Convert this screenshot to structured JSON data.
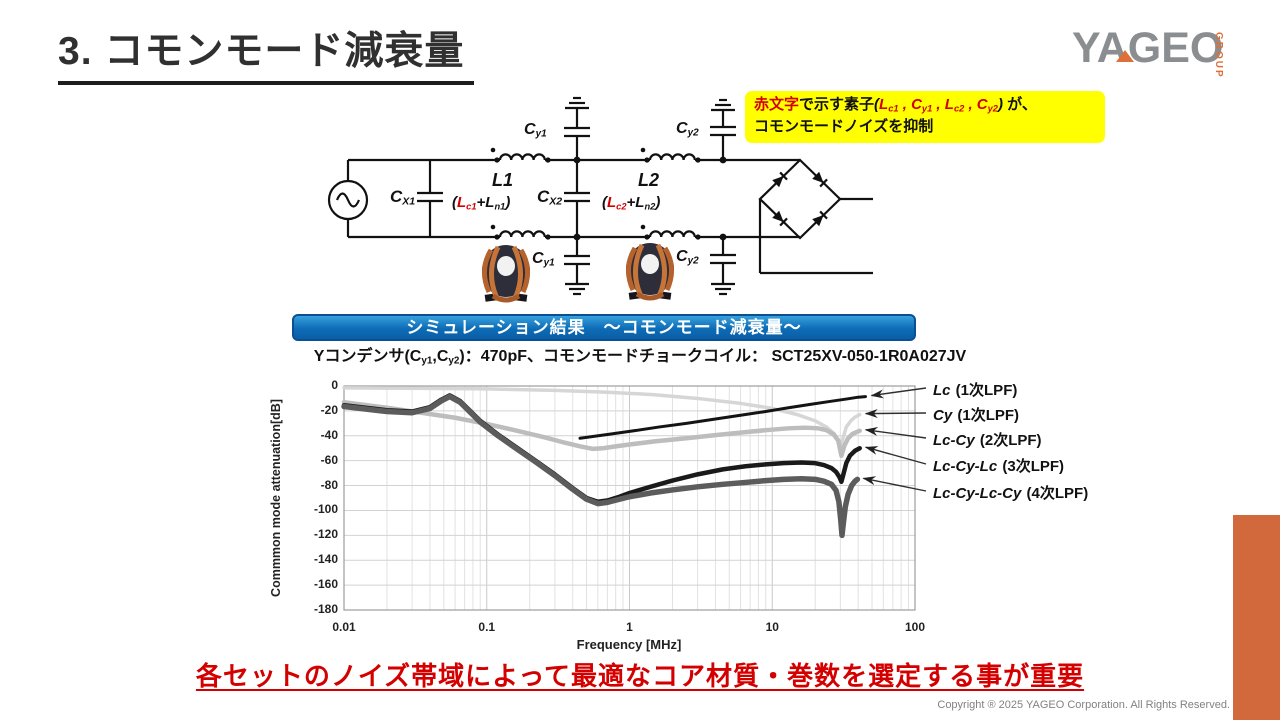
{
  "header": {
    "title": "3. コモンモード減衰量",
    "logo": {
      "name": "YAGEO",
      "group": "GROUP"
    }
  },
  "note": {
    "red_label": "赤文字",
    "mid": "で示す素子",
    "paren_open": "(",
    "components": [
      {
        "base": "L",
        "sub": "c1"
      },
      {
        "base": "C",
        "sub": "y1"
      },
      {
        "base": "L",
        "sub": "c2"
      },
      {
        "base": "C",
        "sub": "y2"
      }
    ],
    "separator": " , ",
    "paren_close": ")",
    "suffix": " が、",
    "line2": "コモンモードノイズを抑制"
  },
  "circuit": {
    "cx1": {
      "base": "C",
      "sub": "X1"
    },
    "cx2": {
      "base": "C",
      "sub": "X2"
    },
    "cy1": {
      "base": "C",
      "sub": "y1"
    },
    "cy2": {
      "base": "C",
      "sub": "y2"
    },
    "l1": {
      "name": "L1",
      "paren_open": "(",
      "red": {
        "base": "L",
        "sub": "c1"
      },
      "plus": "+",
      "black": {
        "base": "L",
        "sub": "n1"
      },
      "paren_close": ")"
    },
    "l2": {
      "name": "L2",
      "paren_open": "(",
      "red": {
        "base": "L",
        "sub": "c2"
      },
      "plus": "+",
      "black": {
        "base": "L",
        "sub": "n2"
      },
      "paren_close": ")"
    }
  },
  "banner": {
    "text": "シミュレーション結果　～コモンモード減衰量～"
  },
  "condition": {
    "prefix": "Yコンデンサ(",
    "cap1": {
      "base": "C",
      "sub": "y1"
    },
    "comma": ",",
    "cap2": {
      "base": "C",
      "sub": "y2"
    },
    "suffix": ")：470pF、コモンモードチョークコイル： SCT25XV-050-1R0A027JV"
  },
  "chart_data": {
    "type": "line",
    "xlabel": "Frequency [MHz]",
    "ylabel": "Commmon mode attenuation[dB]",
    "x_scale": "log",
    "xlim": [
      0.01,
      100
    ],
    "ylim": [
      -180,
      0
    ],
    "x_ticks": [
      "0.01",
      "0.1",
      "1",
      "10",
      "100"
    ],
    "y_ticks": [
      "0",
      "-20",
      "-40",
      "-60",
      "-80",
      "-100",
      "-120",
      "-140",
      "-160",
      "-180"
    ],
    "grid": true,
    "legend_position": "right",
    "legend": [
      {
        "italic": "Lc",
        "rest": " (1次LPF)"
      },
      {
        "italic": "Cy",
        "rest": " (1次LPF)"
      },
      {
        "italic": "Lc-Cy",
        "rest": " (2次LPF)"
      },
      {
        "italic": "Lc-Cy-Lc",
        "rest": " (3次LPF)"
      },
      {
        "italic": "Lc-Cy-Lc-Cy",
        "rest": " (4次LPF)"
      }
    ],
    "series": [
      {
        "name": "Lc (1次LPF)",
        "color": "#141414",
        "width": 3,
        "points": [
          [
            0.45,
            -42
          ],
          [
            0.7,
            -39
          ],
          [
            1,
            -36.5
          ],
          [
            1.6,
            -33
          ],
          [
            2.5,
            -30
          ],
          [
            4,
            -26.5
          ],
          [
            6,
            -23.5
          ],
          [
            9,
            -20.5
          ],
          [
            13,
            -17.5
          ],
          [
            18,
            -15
          ],
          [
            25,
            -12.5
          ],
          [
            33,
            -10.5
          ],
          [
            40,
            -9
          ],
          [
            45,
            -8.5
          ]
        ]
      },
      {
        "name": "Cy (1次LPF)",
        "color": "#d6d6d6",
        "width": 3.5,
        "points": [
          [
            0.01,
            -1.5
          ],
          [
            0.03,
            -1.8
          ],
          [
            0.1,
            -2.3
          ],
          [
            0.3,
            -3.5
          ],
          [
            0.7,
            -5
          ],
          [
            1.5,
            -7
          ],
          [
            3,
            -10
          ],
          [
            6,
            -14
          ],
          [
            10,
            -18
          ],
          [
            15,
            -23
          ],
          [
            20,
            -28
          ],
          [
            24,
            -33
          ],
          [
            27,
            -38
          ],
          [
            29,
            -43
          ],
          [
            30.3,
            -47
          ],
          [
            31.5,
            -41
          ],
          [
            33,
            -33
          ],
          [
            35.5,
            -28
          ],
          [
            38,
            -25
          ],
          [
            41,
            -23
          ]
        ]
      },
      {
        "name": "Lc-Cy (2次LPF)",
        "color": "#bdbdbd",
        "width": 4.5,
        "points": [
          [
            0.01,
            -13
          ],
          [
            0.02,
            -17.5
          ],
          [
            0.04,
            -22.5
          ],
          [
            0.06,
            -25.5
          ],
          [
            0.1,
            -30.5
          ],
          [
            0.15,
            -35
          ],
          [
            0.25,
            -41
          ],
          [
            0.35,
            -45.5
          ],
          [
            0.45,
            -48.5
          ],
          [
            0.55,
            -50.5
          ],
          [
            0.65,
            -50
          ],
          [
            0.8,
            -48.5
          ],
          [
            1,
            -47
          ],
          [
            1.5,
            -44.5
          ],
          [
            2.5,
            -42
          ],
          [
            4,
            -39.5
          ],
          [
            6,
            -37.5
          ],
          [
            9,
            -35.5
          ],
          [
            13,
            -34
          ],
          [
            17,
            -33.5
          ],
          [
            21,
            -34
          ],
          [
            24,
            -35.5
          ],
          [
            27,
            -39
          ],
          [
            29,
            -44
          ],
          [
            30.5,
            -56
          ],
          [
            32,
            -48
          ],
          [
            34,
            -42
          ],
          [
            36.5,
            -38.5
          ],
          [
            39,
            -37
          ],
          [
            41,
            -36
          ]
        ]
      },
      {
        "name": "Lc-Cy-Lc (3次LPF)",
        "color": "#1a1a1a",
        "width": 4.5,
        "points": [
          [
            0.01,
            -15.5
          ],
          [
            0.02,
            -19.5
          ],
          [
            0.03,
            -20.5
          ],
          [
            0.04,
            -17
          ],
          [
            0.048,
            -11
          ],
          [
            0.055,
            -7.5
          ],
          [
            0.065,
            -12
          ],
          [
            0.075,
            -19
          ],
          [
            0.09,
            -28
          ],
          [
            0.12,
            -39
          ],
          [
            0.16,
            -49
          ],
          [
            0.22,
            -60
          ],
          [
            0.3,
            -71
          ],
          [
            0.4,
            -82
          ],
          [
            0.5,
            -90
          ],
          [
            0.6,
            -93
          ],
          [
            0.7,
            -92
          ],
          [
            0.85,
            -89
          ],
          [
            1,
            -86
          ],
          [
            1.4,
            -81
          ],
          [
            2,
            -76
          ],
          [
            3,
            -71
          ],
          [
            4.5,
            -67
          ],
          [
            6.5,
            -64.5
          ],
          [
            9,
            -63
          ],
          [
            12,
            -62
          ],
          [
            16,
            -61.5
          ],
          [
            20,
            -62
          ],
          [
            23,
            -63.5
          ],
          [
            26,
            -66
          ],
          [
            28,
            -69
          ],
          [
            29.5,
            -73
          ],
          [
            30.5,
            -77
          ],
          [
            31.5,
            -71
          ],
          [
            33,
            -62
          ],
          [
            35,
            -56
          ],
          [
            38,
            -52
          ],
          [
            41,
            -50
          ]
        ]
      },
      {
        "name": "Lc-Cy-Lc-Cy (4次LPF)",
        "color": "#5c5c5c",
        "width": 5.5,
        "points": [
          [
            0.01,
            -16.5
          ],
          [
            0.02,
            -20.5
          ],
          [
            0.03,
            -21.5
          ],
          [
            0.04,
            -18
          ],
          [
            0.048,
            -12
          ],
          [
            0.055,
            -8.5
          ],
          [
            0.065,
            -13
          ],
          [
            0.075,
            -20
          ],
          [
            0.09,
            -29
          ],
          [
            0.12,
            -40
          ],
          [
            0.16,
            -50
          ],
          [
            0.22,
            -61
          ],
          [
            0.3,
            -72
          ],
          [
            0.4,
            -83
          ],
          [
            0.5,
            -91
          ],
          [
            0.6,
            -94.5
          ],
          [
            0.7,
            -93.5
          ],
          [
            0.85,
            -91
          ],
          [
            1,
            -89
          ],
          [
            1.4,
            -86
          ],
          [
            2,
            -83.5
          ],
          [
            3,
            -81
          ],
          [
            4.5,
            -79
          ],
          [
            6.5,
            -77.5
          ],
          [
            9,
            -76
          ],
          [
            12,
            -75
          ],
          [
            16,
            -74.5
          ],
          [
            20,
            -75
          ],
          [
            23,
            -76.5
          ],
          [
            26,
            -79
          ],
          [
            28,
            -84
          ],
          [
            29.3,
            -93
          ],
          [
            30.2,
            -108
          ],
          [
            30.8,
            -120
          ],
          [
            31.5,
            -110
          ],
          [
            32.5,
            -97
          ],
          [
            34,
            -87
          ],
          [
            36,
            -80
          ],
          [
            38,
            -76.5
          ],
          [
            39.5,
            -75
          ]
        ]
      }
    ]
  },
  "footer": {
    "message": "各セットのノイズ帯域によって最適なコア材質・巻数を選定する事が重要",
    "copyright": "Copyright ® 2025 YAGEO Corporation. All Rights Reserved."
  },
  "colors": {
    "accent_orange": "#d2693c",
    "banner_blue": "#0d6cb6",
    "note_yellow": "#ffff00",
    "alert_red": "#d40000"
  }
}
